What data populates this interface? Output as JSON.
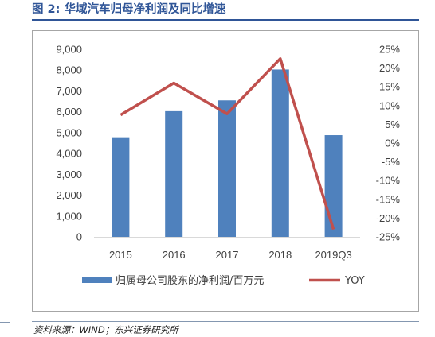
{
  "figure_title": "图 2: 华域汽车归母净利润及同比增速",
  "source_note": "资料来源：WIND；东兴证券研究所",
  "colors": {
    "bar": "#4f81bd",
    "line": "#c0504d",
    "title": "#2f5597"
  },
  "chart_data": {
    "type": "bar",
    "categories": [
      "2015",
      "2016",
      "2017",
      "2018",
      "2019Q3"
    ],
    "series": [
      {
        "name": "归属母公司股东的净利润/百万元",
        "type": "bar",
        "axis": "left",
        "values": [
          4780,
          6030,
          6550,
          8030,
          4880
        ]
      },
      {
        "name": "YOY",
        "type": "line",
        "axis": "right",
        "values": [
          7.5,
          16.0,
          7.8,
          22.5,
          -23.0
        ]
      }
    ],
    "y_left": {
      "ylim": [
        0,
        9000
      ],
      "ticks": [
        0,
        1000,
        2000,
        3000,
        4000,
        5000,
        6000,
        7000,
        8000,
        9000
      ],
      "tick_labels": [
        "0",
        "1,000",
        "2,000",
        "3,000",
        "4,000",
        "5,000",
        "6,000",
        "7,000",
        "8,000",
        "9,000"
      ]
    },
    "y_right": {
      "ylim": [
        -25,
        25
      ],
      "ticks": [
        -25,
        -20,
        -15,
        -10,
        -5,
        0,
        5,
        10,
        15,
        20,
        25
      ],
      "tick_labels": [
        "-25%",
        "-20%",
        "-15%",
        "-10%",
        "-5%",
        "0%",
        "5%",
        "10%",
        "15%",
        "20%",
        "25%"
      ]
    },
    "grid": false,
    "legend_position": "bottom"
  }
}
